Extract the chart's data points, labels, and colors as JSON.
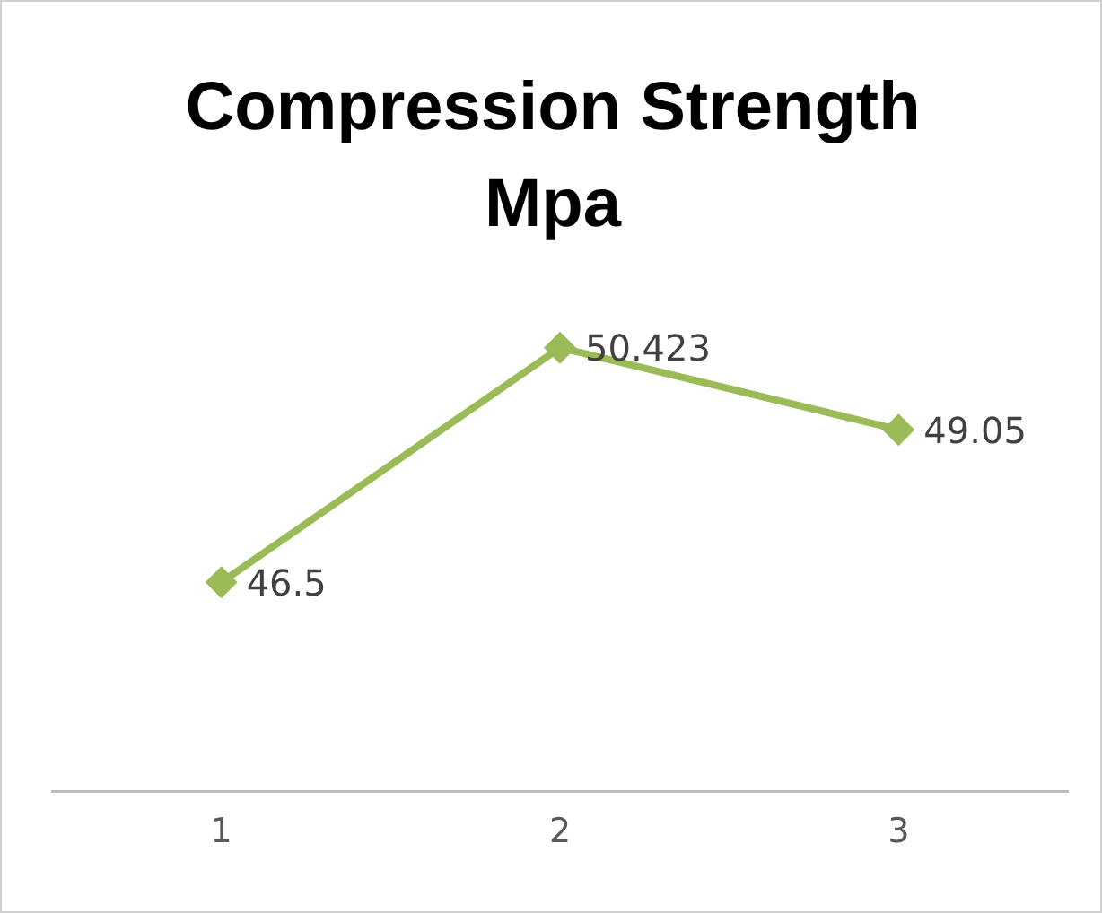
{
  "chart_data": {
    "type": "line",
    "title": "Compression Strength Mpa",
    "categories": [
      "1",
      "2",
      "3"
    ],
    "series": [
      {
        "color": "#9bbb59",
        "values": [
          46.5,
          50.423,
          49.05
        ]
      }
    ],
    "tick_labels": "x",
    "data_labels": true,
    "marker": "diamond",
    "grid": false,
    "legend": false
  }
}
